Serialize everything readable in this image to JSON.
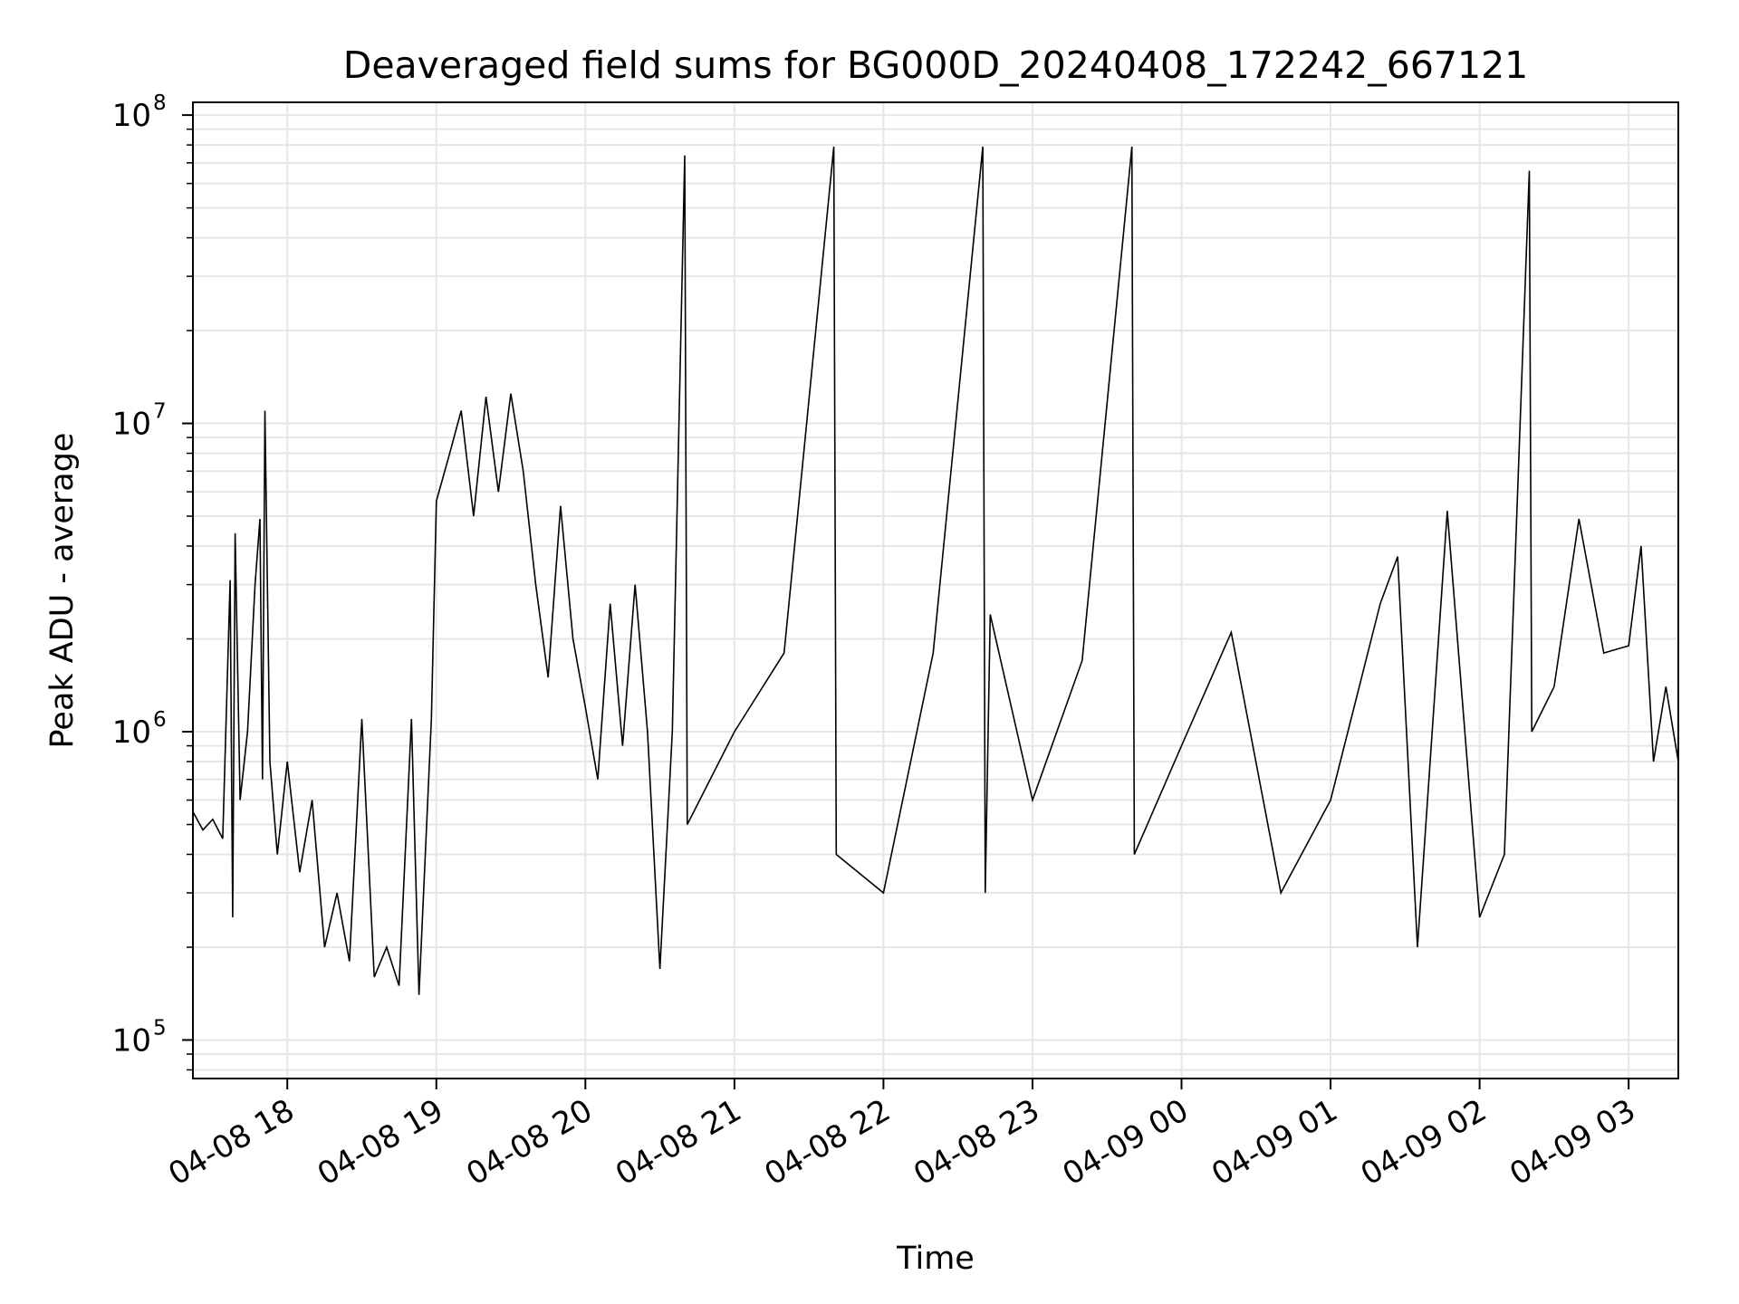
{
  "chart_data": {
    "type": "line",
    "title": "Deaveraged field sums for BG000D_20240408_172242_667121",
    "xlabel": "Time",
    "ylabel": "Peak ADU - average",
    "yscale": "log",
    "ylim": [
      75000,
      110000000
    ],
    "xlim": [
      "2024-04-08 17:22",
      "2024-04-09 03:20"
    ],
    "grid": true,
    "legend": "none",
    "line_color": "#000000",
    "grid_color": "#e6e6e6",
    "x_ticks": [
      {
        "t": "2024-04-08 18:00",
        "label": "04-08 18"
      },
      {
        "t": "2024-04-08 19:00",
        "label": "04-08 19"
      },
      {
        "t": "2024-04-08 20:00",
        "label": "04-08 20"
      },
      {
        "t": "2024-04-08 21:00",
        "label": "04-08 21"
      },
      {
        "t": "2024-04-08 22:00",
        "label": "04-08 22"
      },
      {
        "t": "2024-04-08 23:00",
        "label": "04-08 23"
      },
      {
        "t": "2024-04-09 00:00",
        "label": "04-09 00"
      },
      {
        "t": "2024-04-09 01:00",
        "label": "04-09 01"
      },
      {
        "t": "2024-04-09 02:00",
        "label": "04-09 02"
      },
      {
        "t": "2024-04-09 03:00",
        "label": "04-09 03"
      }
    ],
    "y_ticks": [
      {
        "value": 100000,
        "base": "10",
        "exp": "5"
      },
      {
        "value": 1000000,
        "base": "10",
        "exp": "6"
      },
      {
        "value": 10000000,
        "base": "10",
        "exp": "7"
      },
      {
        "value": 100000000,
        "base": "10",
        "exp": "8"
      }
    ],
    "series": [
      {
        "points": [
          [
            "2024-04-08 17:22",
            550000
          ],
          [
            "2024-04-08 17:26",
            480000
          ],
          [
            "2024-04-08 17:30",
            520000
          ],
          [
            "2024-04-08 17:34",
            450000
          ],
          [
            "2024-04-08 17:37",
            3100000
          ],
          [
            "2024-04-08 17:38",
            250000
          ],
          [
            "2024-04-08 17:39",
            4400000
          ],
          [
            "2024-04-08 17:41",
            600000
          ],
          [
            "2024-04-08 17:44",
            1000000
          ],
          [
            "2024-04-08 17:47",
            3000000
          ],
          [
            "2024-04-08 17:49",
            4900000
          ],
          [
            "2024-04-08 17:50",
            700000
          ],
          [
            "2024-04-08 17:51",
            11000000
          ],
          [
            "2024-04-08 17:53",
            800000
          ],
          [
            "2024-04-08 17:56",
            400000
          ],
          [
            "2024-04-08 18:00",
            800000
          ],
          [
            "2024-04-08 18:05",
            350000
          ],
          [
            "2024-04-08 18:10",
            600000
          ],
          [
            "2024-04-08 18:15",
            200000
          ],
          [
            "2024-04-08 18:20",
            300000
          ],
          [
            "2024-04-08 18:25",
            180000
          ],
          [
            "2024-04-08 18:30",
            1100000
          ],
          [
            "2024-04-08 18:35",
            160000
          ],
          [
            "2024-04-08 18:40",
            200000
          ],
          [
            "2024-04-08 18:45",
            150000
          ],
          [
            "2024-04-08 18:50",
            1100000
          ],
          [
            "2024-04-08 18:53",
            140000
          ],
          [
            "2024-04-08 18:58",
            1100000
          ],
          [
            "2024-04-08 19:00",
            5600000
          ],
          [
            "2024-04-08 19:05",
            7800000
          ],
          [
            "2024-04-08 19:10",
            11000000
          ],
          [
            "2024-04-08 19:15",
            5000000
          ],
          [
            "2024-04-08 19:20",
            12200000
          ],
          [
            "2024-04-08 19:25",
            6000000
          ],
          [
            "2024-04-08 19:30",
            12500000
          ],
          [
            "2024-04-08 19:35",
            7000000
          ],
          [
            "2024-04-08 19:40",
            3000000
          ],
          [
            "2024-04-08 19:45",
            1500000
          ],
          [
            "2024-04-08 19:50",
            5400000
          ],
          [
            "2024-04-08 19:55",
            2000000
          ],
          [
            "2024-04-08 20:00",
            1200000
          ],
          [
            "2024-04-08 20:05",
            700000
          ],
          [
            "2024-04-08 20:10",
            2600000
          ],
          [
            "2024-04-08 20:15",
            900000
          ],
          [
            "2024-04-08 20:20",
            3000000
          ],
          [
            "2024-04-08 20:25",
            1000000
          ],
          [
            "2024-04-08 20:30",
            170000
          ],
          [
            "2024-04-08 20:35",
            1000000
          ],
          [
            "2024-04-08 20:40",
            74000000
          ],
          [
            "2024-04-08 20:41",
            500000
          ],
          [
            "2024-04-08 21:00",
            1000000
          ],
          [
            "2024-04-08 21:20",
            1800000
          ],
          [
            "2024-04-08 21:40",
            79000000
          ],
          [
            "2024-04-08 21:41",
            400000
          ],
          [
            "2024-04-08 22:00",
            300000
          ],
          [
            "2024-04-08 22:20",
            1800000
          ],
          [
            "2024-04-08 22:40",
            79000000
          ],
          [
            "2024-04-08 22:41",
            300000
          ],
          [
            "2024-04-08 22:43",
            2400000
          ],
          [
            "2024-04-08 23:00",
            600000
          ],
          [
            "2024-04-08 23:20",
            1700000
          ],
          [
            "2024-04-08 23:40",
            79000000
          ],
          [
            "2024-04-08 23:41",
            400000
          ],
          [
            "2024-04-09 00:00",
            900000
          ],
          [
            "2024-04-09 00:20",
            2100000
          ],
          [
            "2024-04-09 00:40",
            300000
          ],
          [
            "2024-04-09 01:00",
            600000
          ],
          [
            "2024-04-09 01:20",
            2600000
          ],
          [
            "2024-04-09 01:27",
            3700000
          ],
          [
            "2024-04-09 01:35",
            200000
          ],
          [
            "2024-04-09 01:47",
            5200000
          ],
          [
            "2024-04-09 02:00",
            250000
          ],
          [
            "2024-04-09 02:10",
            400000
          ],
          [
            "2024-04-09 02:20",
            66000000
          ],
          [
            "2024-04-09 02:21",
            1000000
          ],
          [
            "2024-04-09 02:30",
            1400000
          ],
          [
            "2024-04-09 02:40",
            4900000
          ],
          [
            "2024-04-09 02:50",
            1800000
          ],
          [
            "2024-04-09 03:00",
            1900000
          ],
          [
            "2024-04-09 03:05",
            4000000
          ],
          [
            "2024-04-09 03:10",
            800000
          ],
          [
            "2024-04-09 03:15",
            1400000
          ],
          [
            "2024-04-09 03:20",
            800000
          ]
        ]
      }
    ]
  }
}
